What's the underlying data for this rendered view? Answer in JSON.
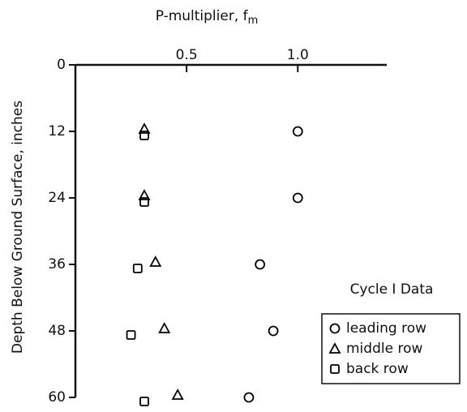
{
  "chart_data": {
    "type": "scatter",
    "x_label": "P-multiplier, f",
    "x_label_sub": "m",
    "y_label": "Depth Below Ground Surface, inches",
    "legend_title": "Cycle I Data",
    "xlim": [
      0,
      1.4
    ],
    "xticks": [
      0.5,
      {
        "value": 1,
        "label": "1.0"
      }
    ],
    "ylim": [
      0,
      60
    ],
    "yticks": [
      0,
      12,
      24,
      36,
      48,
      60
    ],
    "y_inverted": true,
    "x_axis_top": true,
    "legend": "lower right",
    "series": [
      {
        "name": "leading row",
        "marker": "circle",
        "color": "#000000",
        "x": [
          1.0,
          1.0,
          0.83,
          0.89,
          0.78
        ],
        "values": [
          12,
          24,
          36,
          48,
          60
        ]
      },
      {
        "name": "middle row",
        "marker": "triangle",
        "color": "#000000",
        "x": [
          0.31,
          0.31,
          0.36,
          0.4,
          0.46
        ],
        "values": [
          12,
          24,
          36,
          48,
          60
        ]
      },
      {
        "name": "back row",
        "marker": "square",
        "color": "#000000",
        "x": [
          0.31,
          0.31,
          0.28,
          0.25,
          0.31
        ],
        "values": [
          12,
          24,
          36,
          48,
          60
        ]
      }
    ]
  }
}
